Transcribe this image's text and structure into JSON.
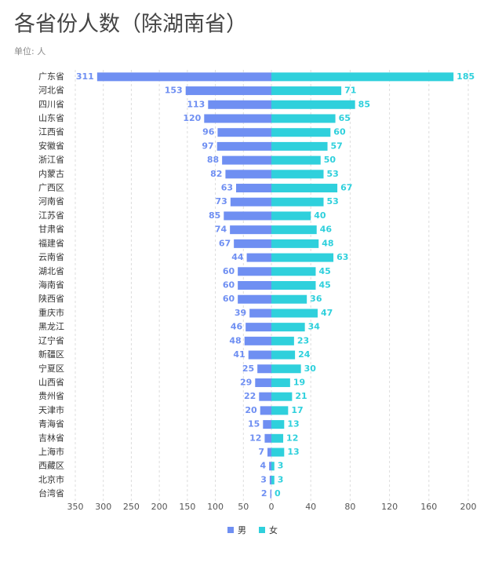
{
  "chart_data": {
    "type": "butterfly",
    "title": "各省份人数（除湖南省）",
    "subtitle": "单位: 人",
    "categories": [
      "广东省",
      "河北省",
      "四川省",
      "山东省",
      "江西省",
      "安徽省",
      "浙江省",
      "内蒙古",
      "广西区",
      "河南省",
      "江苏省",
      "甘肃省",
      "福建省",
      "云南省",
      "湖北省",
      "海南省",
      "陕西省",
      "重庆市",
      "黑龙江",
      "辽宁省",
      "新疆区",
      "宁夏区",
      "山西省",
      "贵州省",
      "天津市",
      "青海省",
      "吉林省",
      "上海市",
      "西藏区",
      "北京市",
      "台湾省"
    ],
    "series": [
      {
        "name": "男",
        "color": "#6f8ff2",
        "axis": "x_left",
        "values": [
          311,
          153,
          113,
          120,
          96,
          97,
          88,
          82,
          63,
          73,
          85,
          74,
          67,
          44,
          60,
          60,
          60,
          39,
          46,
          48,
          41,
          25,
          29,
          22,
          20,
          15,
          12,
          7,
          4,
          3,
          2
        ]
      },
      {
        "name": "女",
        "color": "#2fd0dc",
        "values": [
          185,
          71,
          85,
          65,
          60,
          57,
          50,
          53,
          67,
          53,
          40,
          46,
          48,
          63,
          45,
          45,
          36,
          47,
          34,
          23,
          24,
          30,
          19,
          21,
          17,
          13,
          12,
          13,
          3,
          3,
          0
        ]
      }
    ],
    "xlim_left": [
      0,
      350
    ],
    "xticks_left": [
      350,
      300,
      250,
      200,
      150,
      100,
      50
    ],
    "xlim": [
      0,
      200
    ],
    "xticks": [
      0,
      40,
      80,
      120,
      160,
      200
    ],
    "grid": true
  }
}
